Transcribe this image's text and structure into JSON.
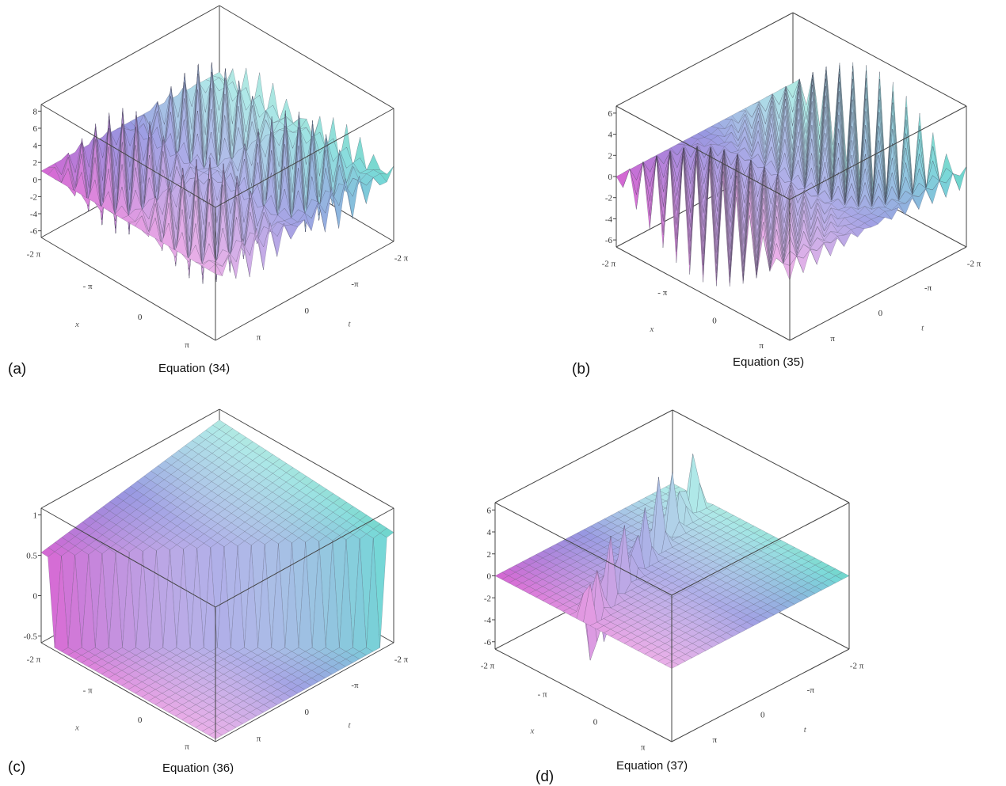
{
  "panels": [
    {
      "label": "(a)",
      "caption": "Equation (34)",
      "zticks": [
        "8",
        "6",
        "4",
        "2",
        "0",
        "-2",
        "-4",
        "-6"
      ],
      "xticks": [
        "-2 π",
        "- π",
        "0",
        "π"
      ],
      "tticks": [
        "-2 π",
        "-π",
        "0",
        "π"
      ],
      "xlabel": "x",
      "tlabel": "t"
    },
    {
      "label": "(b)",
      "caption": "Equation (35)",
      "zticks": [
        "6",
        "4",
        "2",
        "0",
        "-2",
        "-4",
        "-6"
      ],
      "xticks": [
        "-2 π",
        "- π",
        "0",
        "π"
      ],
      "tticks": [
        "-2 π",
        "-π",
        "0",
        "π"
      ],
      "xlabel": "x",
      "tlabel": "t"
    },
    {
      "label": "(c)",
      "caption": "Equation (36)",
      "zticks": [
        "1",
        "0.5",
        "0",
        "-0.5"
      ],
      "xticks": [
        "-2 π",
        "- π",
        "0",
        "π"
      ],
      "tticks": [
        "-2 π",
        "-π",
        "0",
        "π"
      ],
      "xlabel": "x",
      "tlabel": "t"
    },
    {
      "label": "(d)",
      "caption": "Equation (37)",
      "zticks": [
        "6",
        "4",
        "2",
        "0",
        "-2",
        "-4",
        "-6"
      ],
      "xticks": [
        "-2 π",
        "- π",
        "0",
        "π"
      ],
      "tticks": [
        "-2 π",
        "-π",
        "0",
        "π"
      ],
      "xlabel": "x",
      "tlabel": "t"
    }
  ]
}
